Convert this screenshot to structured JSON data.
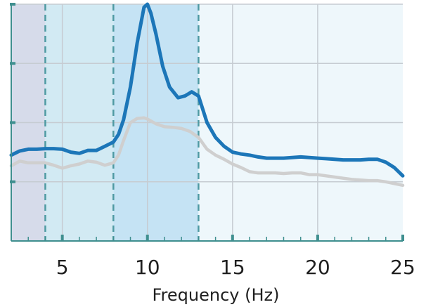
{
  "chart_data": {
    "type": "line",
    "title": "",
    "xlabel": "Frequency (Hz)",
    "ylabel": "",
    "xlim": [
      2,
      25
    ],
    "ylim": [
      0,
      4
    ],
    "x_ticks": [
      5,
      10,
      15,
      20,
      25
    ],
    "x_tick_labels": [
      "5",
      "10",
      "15",
      "20",
      "25"
    ],
    "y_ticks": [
      1,
      2,
      3,
      4
    ],
    "grid": true,
    "bands": [
      {
        "from": 2,
        "to": 4,
        "color": "#d6dbea"
      },
      {
        "from": 4,
        "to": 8,
        "color": "#d2eaf3"
      },
      {
        "from": 8,
        "to": 13,
        "color": "#c5e3f4"
      },
      {
        "from": 13,
        "to": 25,
        "color": "#eef7fb"
      }
    ],
    "band_boundaries": [
      4,
      8,
      13
    ],
    "colors": {
      "grid": "#c6ccd2",
      "boundary": "#4f9aa3",
      "axis": "#3f8f8f",
      "series_primary": "#1c76b8",
      "series_secondary": "#cfcfcf"
    },
    "series": [
      {
        "color": "#1c76b8",
        "x": [
          2,
          2.5,
          3,
          3.5,
          4,
          4.5,
          5,
          5.5,
          6,
          6.5,
          7,
          7.5,
          8,
          8.3,
          8.6,
          9,
          9.4,
          9.8,
          10,
          10.2,
          10.5,
          10.9,
          11.3,
          11.8,
          12.2,
          12.6,
          13,
          13.5,
          14,
          14.5,
          15,
          15.5,
          16,
          16.5,
          17,
          17.5,
          18,
          18.5,
          19,
          19.5,
          20,
          20.5,
          21,
          21.5,
          22,
          22.5,
          23,
          23.5,
          24,
          24.5,
          25
        ],
        "y": [
          1.45,
          1.52,
          1.55,
          1.55,
          1.56,
          1.56,
          1.55,
          1.5,
          1.48,
          1.53,
          1.53,
          1.6,
          1.67,
          1.8,
          2.05,
          2.6,
          3.35,
          3.95,
          4.0,
          3.85,
          3.5,
          2.95,
          2.6,
          2.42,
          2.45,
          2.52,
          2.45,
          2.0,
          1.75,
          1.6,
          1.5,
          1.47,
          1.45,
          1.42,
          1.4,
          1.4,
          1.4,
          1.41,
          1.42,
          1.41,
          1.4,
          1.39,
          1.38,
          1.37,
          1.37,
          1.37,
          1.38,
          1.38,
          1.33,
          1.24,
          1.1
        ]
      },
      {
        "color": "#cfcfcf",
        "x": [
          2,
          2.5,
          3,
          3.5,
          4,
          4.5,
          5,
          5.5,
          6,
          6.5,
          7,
          7.5,
          8,
          8.3,
          8.6,
          9,
          9.4,
          9.8,
          10,
          10.5,
          11,
          11.5,
          12,
          12.5,
          13,
          13.5,
          14,
          14.5,
          15,
          15.5,
          16,
          16.5,
          17,
          17.5,
          18,
          18.5,
          19,
          19.5,
          20,
          20.5,
          21,
          21.5,
          22,
          22.5,
          23,
          23.5,
          24,
          24.5,
          25
        ],
        "y": [
          1.27,
          1.35,
          1.32,
          1.32,
          1.32,
          1.28,
          1.23,
          1.27,
          1.3,
          1.35,
          1.33,
          1.28,
          1.32,
          1.45,
          1.7,
          2.0,
          2.07,
          2.08,
          2.06,
          1.98,
          1.93,
          1.92,
          1.9,
          1.85,
          1.75,
          1.55,
          1.45,
          1.38,
          1.3,
          1.24,
          1.17,
          1.15,
          1.15,
          1.15,
          1.14,
          1.15,
          1.15,
          1.12,
          1.12,
          1.1,
          1.08,
          1.06,
          1.04,
          1.03,
          1.02,
          1.02,
          1.0,
          0.97,
          0.94
        ]
      }
    ]
  }
}
